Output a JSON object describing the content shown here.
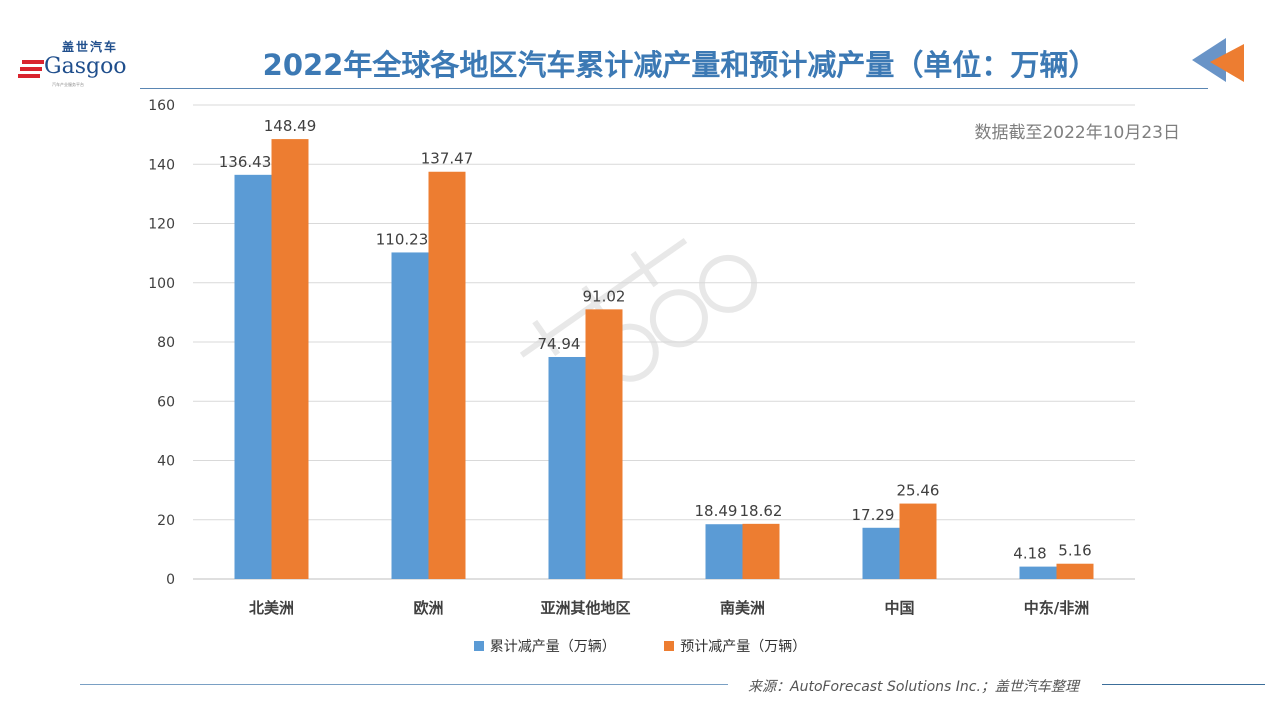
{
  "header": {
    "title": "2022年全球各地区汽车累计减产量和预计减产量（单位：万辆）",
    "note": "数据截至2022年10月23日"
  },
  "logo": {
    "cn": "盖世汽车",
    "en": "Gasgoo",
    "tagline": "汽车产业服务平台"
  },
  "watermark": "盖世汽车 Gasgoo",
  "footer": {
    "source": "来源：AutoForecast Solutions Inc.；盖世汽车整理"
  },
  "colors": {
    "title": "#3c79b4",
    "series1": "#5b9bd5",
    "series2": "#ed7d31"
  },
  "chart_data": {
    "type": "bar",
    "title": "2022年全球各地区汽车累计减产量和预计减产量（单位：万辆）",
    "categories": [
      "北美洲",
      "欧洲",
      "亚洲其他地区",
      "南美洲",
      "中国",
      "中东/非洲"
    ],
    "series": [
      {
        "name": "累计减产量（万辆）",
        "values": [
          136.43,
          110.23,
          74.94,
          18.49,
          17.29,
          4.18
        ]
      },
      {
        "name": "预计减产量（万辆）",
        "values": [
          148.49,
          137.47,
          91.02,
          18.62,
          25.46,
          5.16
        ]
      }
    ],
    "yticks": [
      "0",
      "20",
      "40",
      "60",
      "80",
      "100",
      "120",
      "140",
      "160"
    ],
    "ylim": [
      0,
      160
    ],
    "grid": true,
    "legend": "bottom"
  }
}
